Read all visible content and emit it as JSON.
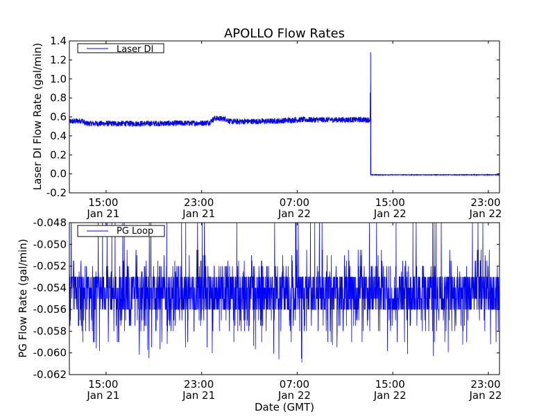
{
  "chart_data": [
    {
      "type": "line",
      "title": "APOLLO Flow Rates",
      "xlabel": "",
      "ylabel": "Laser DI Flow Rate (gal/min)",
      "x_units": "hours since Jan 21 00:00 GMT",
      "xlim": [
        11.93,
        47.93
      ],
      "ylim": [
        -0.2,
        1.4
      ],
      "yticks": [
        -0.2,
        0.0,
        0.2,
        0.4,
        0.6,
        0.8,
        1.0,
        1.2,
        1.4
      ],
      "ytick_labels": [
        "-0.2",
        "0.0",
        "0.2",
        "0.4",
        "0.6",
        "0.8",
        "1.0",
        "1.2",
        "1.4"
      ],
      "xticks": [
        15,
        23,
        31,
        39,
        47
      ],
      "xtick_labels": [
        [
          "15:00",
          "Jan 21"
        ],
        [
          "23:00",
          "Jan 21"
        ],
        [
          "07:00",
          "Jan 22"
        ],
        [
          "15:00",
          "Jan 22"
        ],
        [
          "23:00",
          "Jan 22"
        ]
      ],
      "legend": {
        "entries": [
          "Laser DI"
        ],
        "placement": "upper-left"
      },
      "color": "#0000ff",
      "series": [
        {
          "name": "Laser DI",
          "baseline": [
            [
              11.93,
              0.55
            ],
            [
              13.0,
              0.56
            ],
            [
              13.3,
              0.53
            ],
            [
              18,
              0.53
            ],
            [
              23.0,
              0.535
            ],
            [
              23.6,
              0.54
            ],
            [
              24.1,
              0.585
            ],
            [
              25.0,
              0.58
            ],
            [
              25.4,
              0.55
            ],
            [
              29,
              0.555
            ],
            [
              31,
              0.57
            ],
            [
              37.1,
              0.57
            ],
            [
              37.14,
              1.28
            ],
            [
              37.16,
              -0.01
            ],
            [
              47.93,
              -0.01
            ]
          ],
          "noise_amplitude_before_drop": 0.03,
          "noise_amplitude_after_drop": 0.003,
          "drop_time": 37.14
        }
      ]
    },
    {
      "type": "line",
      "title": "",
      "xlabel": "Date (GMT)",
      "ylabel": "PG Flow Rate (gal/min)",
      "x_units": "hours since Jan 21 00:00 GMT",
      "xlim": [
        11.93,
        47.93
      ],
      "ylim": [
        -0.062,
        -0.048
      ],
      "yticks": [
        -0.062,
        -0.06,
        -0.058,
        -0.056,
        -0.054,
        -0.052,
        -0.05,
        -0.048
      ],
      "ytick_labels": [
        "-0.062",
        "-0.060",
        "-0.058",
        "-0.056",
        "-0.054",
        "-0.052",
        "-0.050",
        "-0.048"
      ],
      "xticks": [
        15,
        23,
        31,
        39,
        47
      ],
      "xtick_labels": [
        [
          "15:00",
          "Jan 21"
        ],
        [
          "23:00",
          "Jan 21"
        ],
        [
          "07:00",
          "Jan 22"
        ],
        [
          "15:00",
          "Jan 22"
        ],
        [
          "23:00",
          "Jan 22"
        ]
      ],
      "legend": {
        "entries": [
          "PG Loop"
        ],
        "placement": "upper-left"
      },
      "color": "#0000ff",
      "series": [
        {
          "name": "PG Loop",
          "mean": -0.0545,
          "typical_range": [
            -0.056,
            -0.053
          ],
          "min": -0.0611,
          "max": -0.048,
          "resolution": 0.001
        }
      ]
    }
  ]
}
